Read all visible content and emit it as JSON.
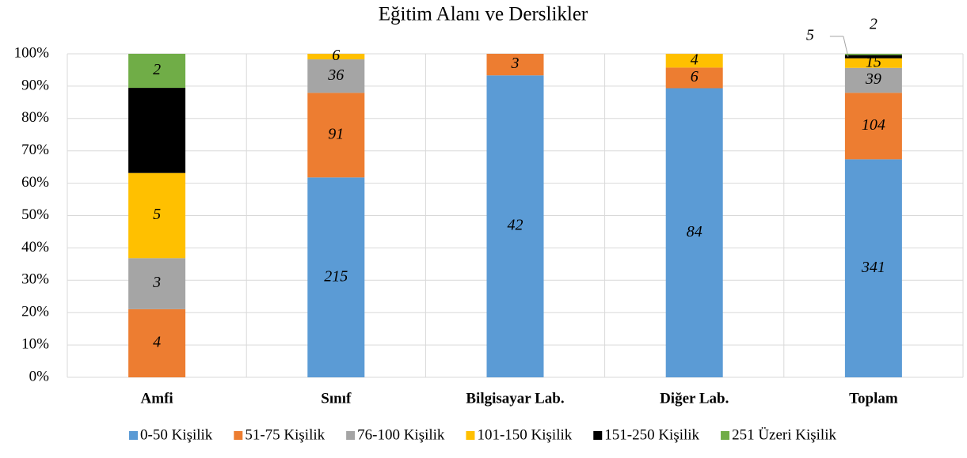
{
  "chart_data": {
    "type": "bar",
    "stacking": "percent",
    "title": "Eğitim Alanı ve Derslikler",
    "categories": [
      "Amfi",
      "Sınıf",
      "Bilgisayar Lab.",
      "Diğer Lab.",
      "Toplam"
    ],
    "series": [
      {
        "name": "0-50 Kişilik",
        "color": "#5b9bd5",
        "values": [
          0,
          215,
          42,
          84,
          341
        ]
      },
      {
        "name": "51-75 Kişilik",
        "color": "#ed7d31",
        "values": [
          4,
          91,
          3,
          6,
          104
        ]
      },
      {
        "name": "76-100 Kişilik",
        "color": "#a5a5a5",
        "values": [
          3,
          36,
          0,
          0,
          39
        ]
      },
      {
        "name": "101-150 Kişilik",
        "color": "#ffc000",
        "values": [
          5,
          6,
          0,
          4,
          15
        ]
      },
      {
        "name": "151-250 Kişilik",
        "color": "#000000",
        "values": [
          5,
          0,
          0,
          0,
          5
        ]
      },
      {
        "name": "251 Üzeri Kişilik",
        "color": "#70ad47",
        "values": [
          2,
          0,
          0,
          0,
          2
        ]
      }
    ],
    "ylim": [
      0,
      100
    ],
    "yticks": [
      {
        "value": 0,
        "label": "0%"
      },
      {
        "value": 10,
        "label": "10%"
      },
      {
        "value": 20,
        "label": "20%"
      },
      {
        "value": 30,
        "label": "30%"
      },
      {
        "value": 40,
        "label": "40%"
      },
      {
        "value": 50,
        "label": "50%"
      },
      {
        "value": 60,
        "label": "60%"
      },
      {
        "value": 70,
        "label": "70%"
      },
      {
        "value": 80,
        "label": "80%"
      },
      {
        "value": 90,
        "label": "90%"
      },
      {
        "value": 100,
        "label": "100%"
      }
    ],
    "grid": true,
    "legend": "bottom"
  }
}
